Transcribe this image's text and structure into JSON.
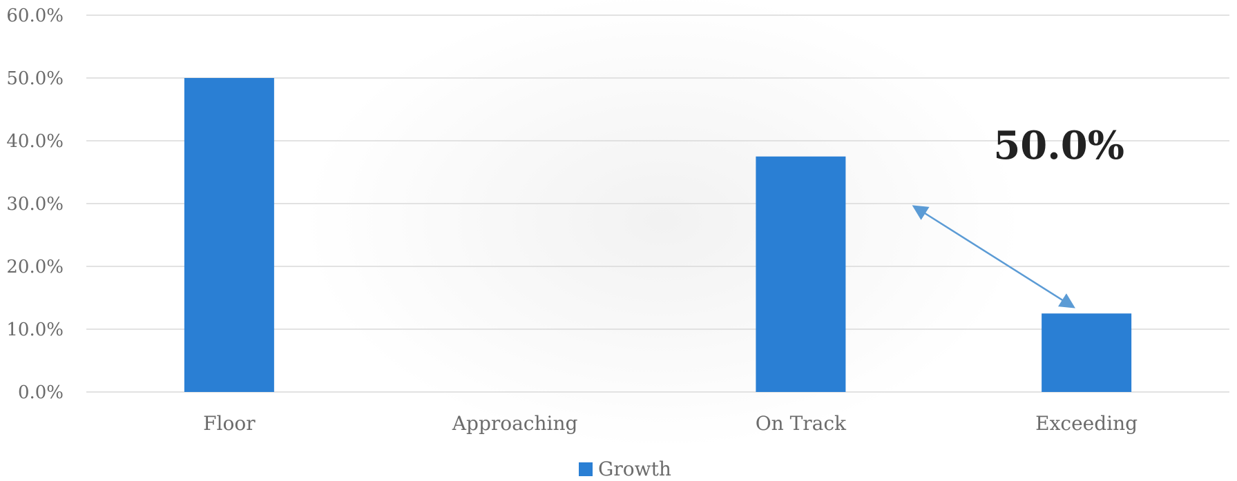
{
  "chart_data": {
    "type": "bar",
    "categories": [
      "Floor",
      "Approaching",
      "On Track",
      "Exceeding"
    ],
    "series": [
      {
        "name": "Growth",
        "values": [
          50.0,
          0.0,
          37.5,
          12.5
        ],
        "color": "#2a7fd4"
      }
    ],
    "ylim": [
      0,
      60
    ],
    "y_ticks": [
      "0.0%",
      "10.0%",
      "20.0%",
      "30.0%",
      "40.0%",
      "50.0%",
      "60.0%"
    ],
    "grid": true,
    "legend_position": "bottom",
    "annotation": {
      "text": "50.0%",
      "arrow_from_category": "On Track",
      "arrow_to_category": "Exceeding",
      "arrow_color": "#5b9bd5"
    }
  }
}
